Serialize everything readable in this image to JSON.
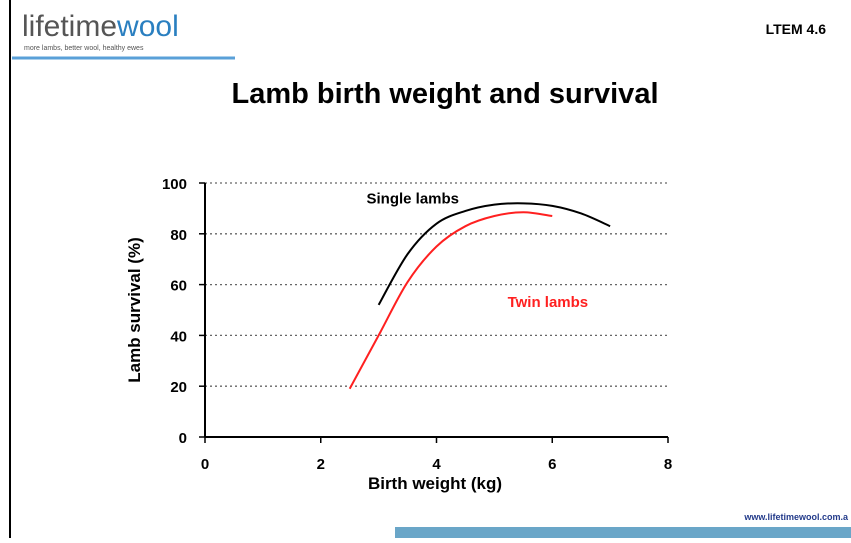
{
  "header": {
    "logo": [
      "lifetime",
      "wool"
    ],
    "tagline": "more lambs, better wool, healthy ewes",
    "code": "LTEM 4.6"
  },
  "footer": {
    "url": "www.lifetimewool.com.a"
  },
  "chart_data": {
    "type": "line",
    "title": "Lamb birth weight and survival",
    "x_label": "Birth weight (kg)",
    "y_label": "Lamb survival (%)",
    "x": [
      2.5,
      3,
      3.5,
      4,
      4.5,
      5,
      5.5,
      6,
      6.5,
      7
    ],
    "series": [
      {
        "name": "Single lambs",
        "color": "#000000",
        "values": [
          null,
          52,
          72,
          84,
          89,
          91.5,
          92,
          91,
          88,
          83
        ]
      },
      {
        "name": "Twin lambs",
        "color": "#ff2020",
        "values": [
          19,
          40,
          61,
          75,
          83,
          87,
          88.5,
          87,
          null,
          null
        ]
      }
    ],
    "xlim": [
      0,
      8
    ],
    "xticks": [
      0,
      2,
      4,
      6,
      8
    ],
    "ylim": [
      0,
      100
    ],
    "yticks": [
      0,
      20,
      40,
      60,
      80,
      100
    ],
    "grid": true
  }
}
